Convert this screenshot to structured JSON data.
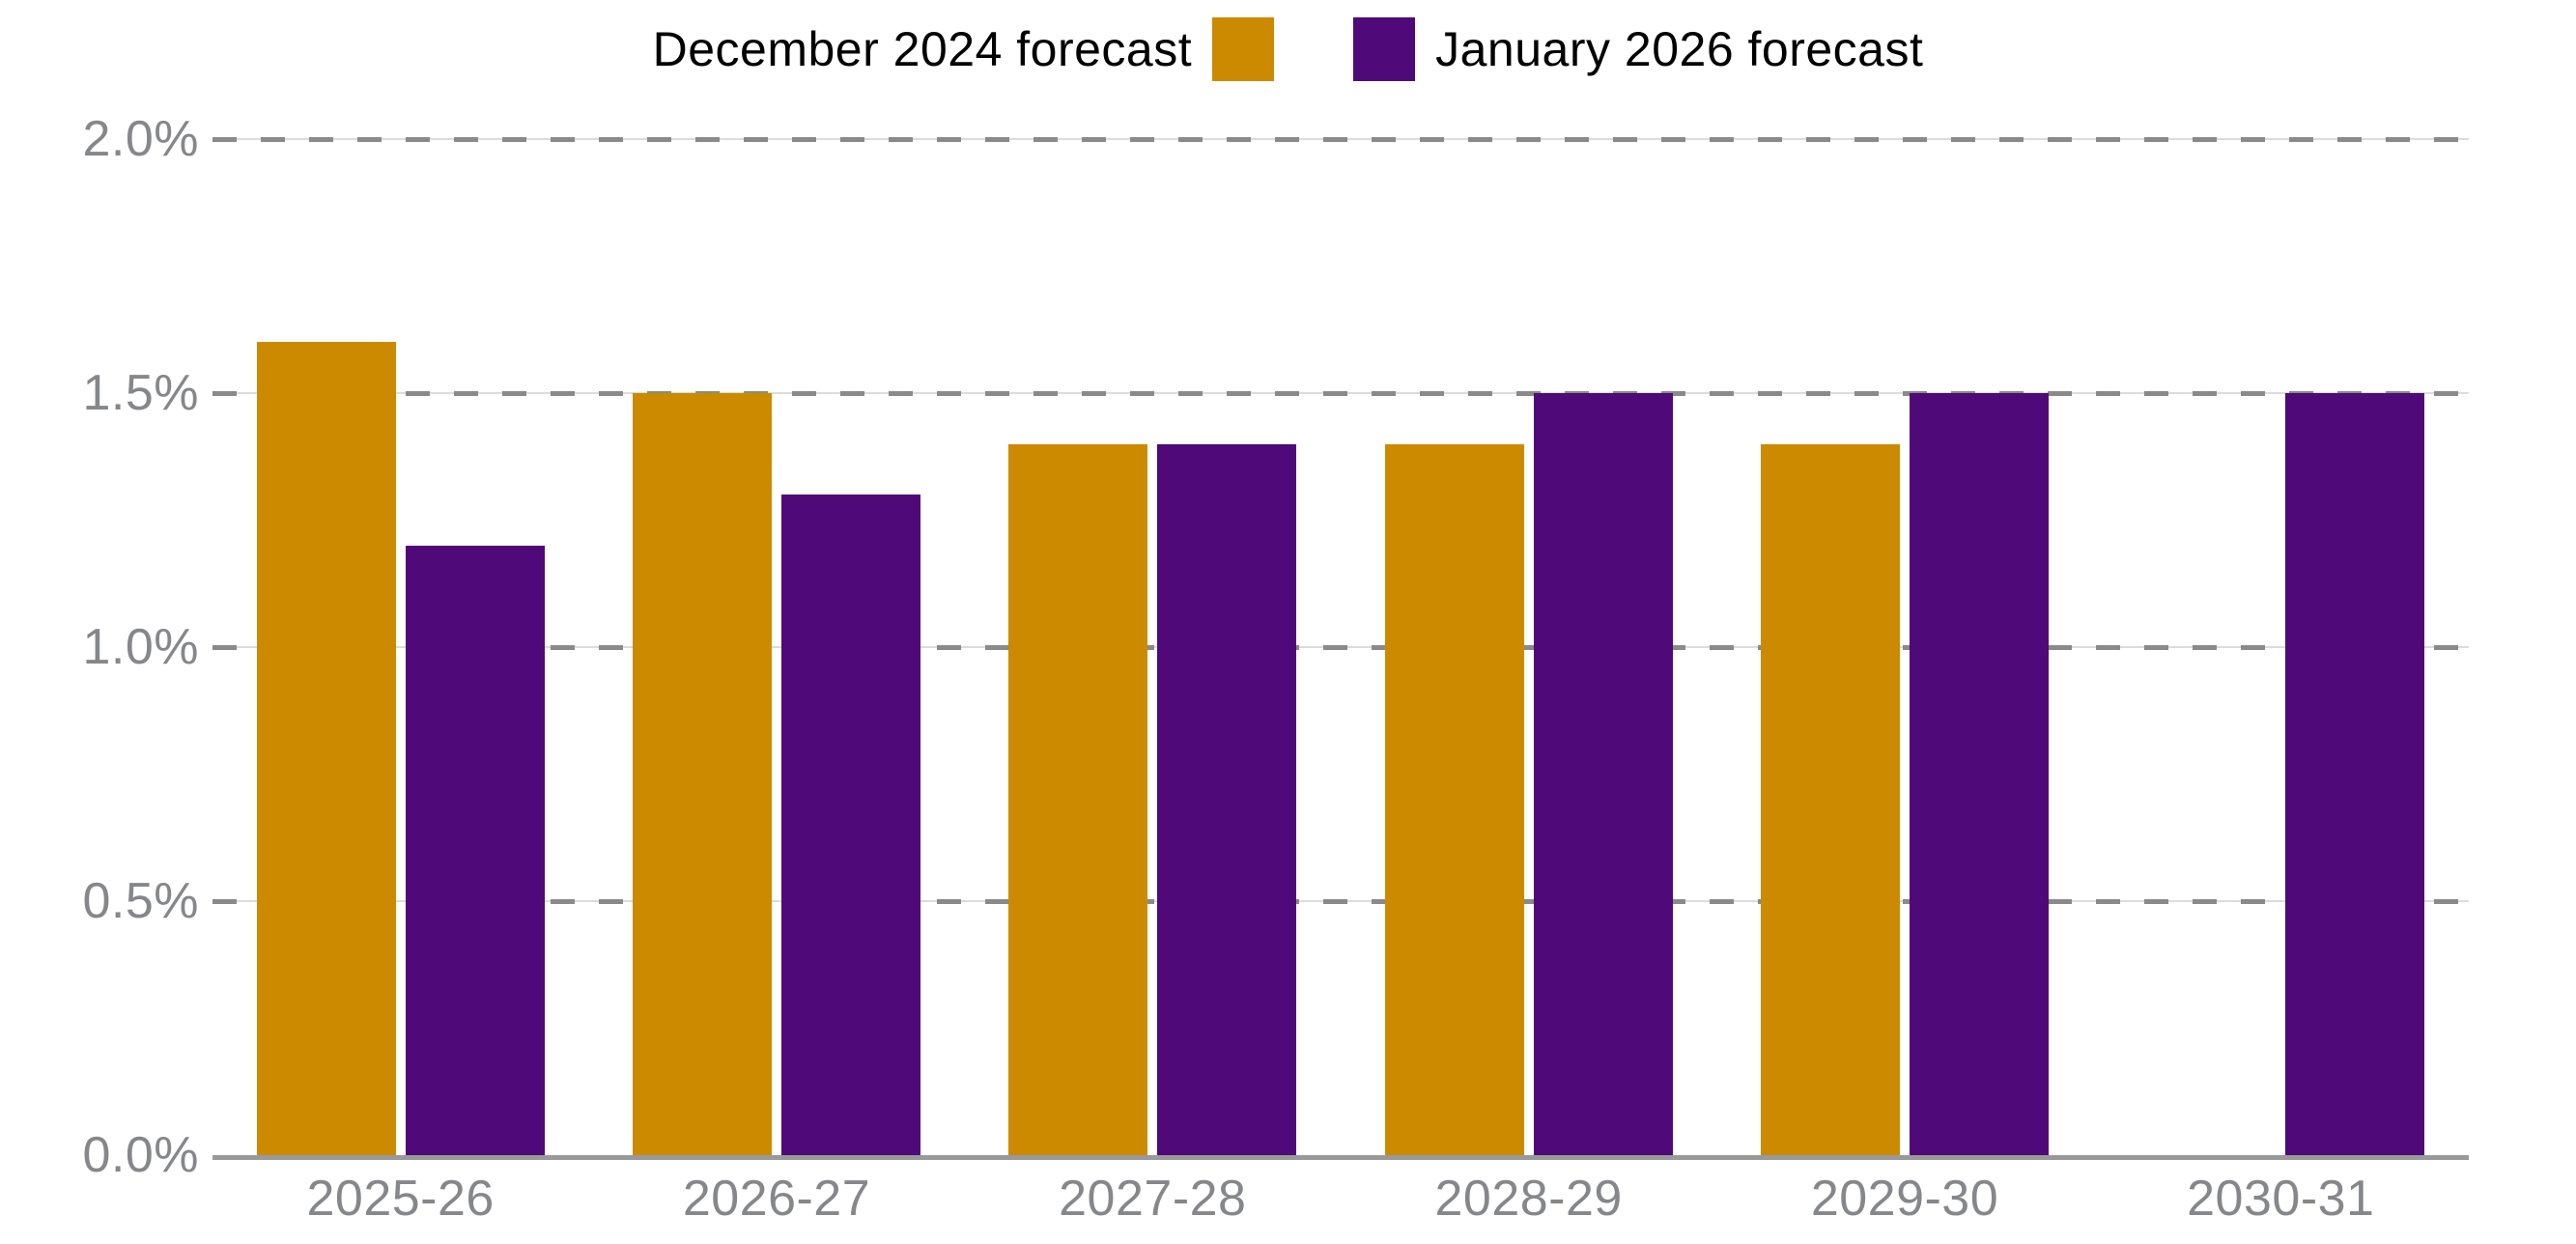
{
  "chart_data": {
    "type": "bar",
    "title": "",
    "xlabel": "",
    "ylabel": "",
    "unit": "percent",
    "categories": [
      "2025-26",
      "2026-27",
      "2027-28",
      "2028-29",
      "2029-30",
      "2030-31"
    ],
    "series": [
      {
        "name": "December 2024 forecast",
        "color": "#CC8A00",
        "values": [
          1.6,
          1.5,
          1.4,
          1.4,
          1.4,
          null
        ]
      },
      {
        "name": "January 2026 forecast",
        "color": "#4F0978",
        "values": [
          1.2,
          1.3,
          1.4,
          1.5,
          1.5,
          1.5
        ]
      }
    ],
    "ylim": [
      0,
      2
    ],
    "y_ticks": [
      {
        "value": 0.0,
        "label": "0.0%"
      },
      {
        "value": 0.5,
        "label": "0.5%"
      },
      {
        "value": 1.0,
        "label": "1.0%"
      },
      {
        "value": 1.5,
        "label": "1.5%"
      },
      {
        "value": 2.0,
        "label": "2.0%"
      }
    ],
    "grid": "horizontal dashed gridlines, solid bottom axis",
    "legend_position": "top-center"
  },
  "colors": {
    "background": "#FFFFFF",
    "legend_text": "#000000",
    "axis_label": "#85878A",
    "gridline_dash": "#8A8A8A",
    "gridline_base": "#DCDCDC",
    "baseline": "#97999B"
  }
}
